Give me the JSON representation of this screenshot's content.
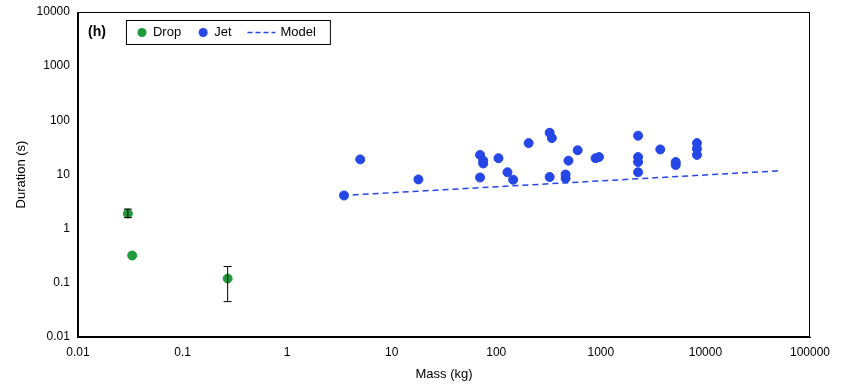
{
  "chart_data": {
    "type": "scatter",
    "x_label": "Mass (kg)",
    "y_label": "Duration (s)",
    "annotations": [
      "(h)"
    ],
    "log": true,
    "grid": false,
    "legend": "top-left",
    "xlim": [
      0.01,
      100000
    ],
    "xticks": [
      0.01,
      0.1,
      1,
      10,
      100,
      1000,
      10000,
      100000
    ],
    "ylim": [
      0.01,
      10000
    ],
    "yticks": [
      0.01,
      0.1,
      1,
      10,
      100,
      1000,
      10000
    ],
    "series": [
      {
        "name": "Drop",
        "color": "#1f9a3a",
        "type": "scatter",
        "marker": "circle",
        "x": [
          0.03,
          0.033,
          0.27
        ],
        "values": [
          1.9,
          0.32,
          0.12
        ],
        "error_low": [
          1.6,
          null,
          0.045
        ],
        "error_high": [
          2.3,
          null,
          0.2
        ]
      },
      {
        "name": "Jet",
        "color": "#2447e6",
        "type": "scatter",
        "marker": "circle",
        "x": [
          3.5,
          5,
          18,
          70,
          75,
          75,
          70,
          105,
          128,
          145,
          204,
          324,
          340,
          324,
          460,
          460,
          490,
          600,
          890,
          960,
          2270,
          2270,
          2270,
          2270,
          3700,
          5200,
          5200,
          8300,
          8300,
          8300
        ],
        "values": [
          4.1,
          19,
          8.1,
          23,
          18,
          16,
          8.8,
          20,
          11,
          8,
          38,
          59,
          47,
          9,
          8.5,
          10,
          18,
          28,
          20,
          21,
          52,
          21,
          17,
          11,
          29,
          17,
          15,
          38,
          30,
          23
        ]
      },
      {
        "name": "Model",
        "color": "#2447e6",
        "type": "line",
        "marker": "none",
        "line_style": "dashed",
        "x": [
          3.4,
          50000
        ],
        "values": [
          4.1,
          11.7
        ]
      }
    ]
  }
}
